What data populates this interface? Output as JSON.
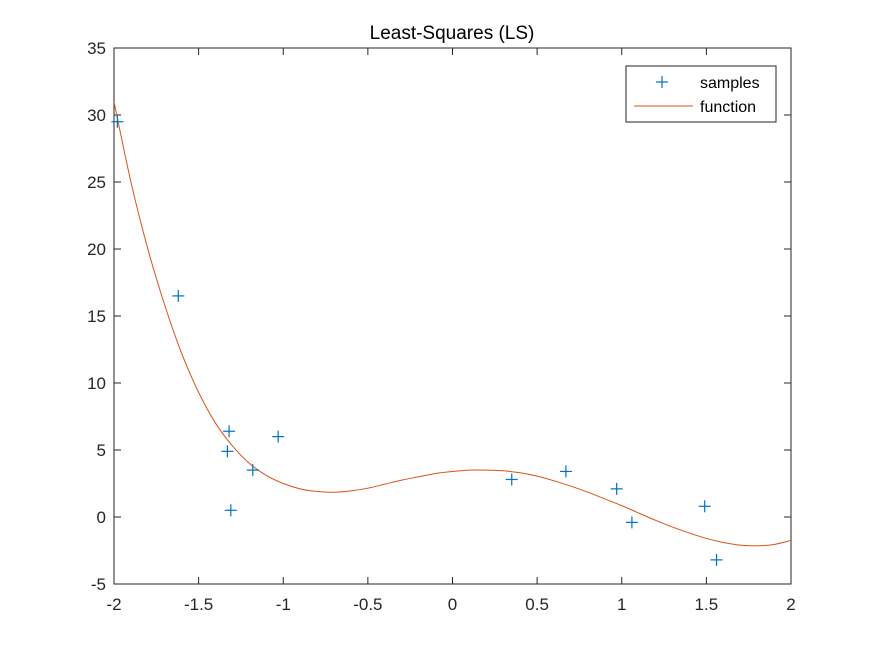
{
  "chart_data": {
    "type": "scatter",
    "title": "Least-Squares (LS)",
    "xlabel": "",
    "ylabel": "",
    "xlim": [
      -2,
      2
    ],
    "ylim": [
      -5,
      35
    ],
    "xticks": [
      -2,
      -1.5,
      -1,
      -0.5,
      0,
      0.5,
      1,
      1.5,
      2
    ],
    "xtick_labels": [
      "-2",
      "-1.5",
      "-1",
      "-0.5",
      "0",
      "0.5",
      "1",
      "1.5",
      "2"
    ],
    "yticks": [
      -5,
      0,
      5,
      10,
      15,
      20,
      25,
      30,
      35
    ],
    "ytick_labels": [
      "-5",
      "0",
      "5",
      "10",
      "15",
      "20",
      "25",
      "30",
      "35"
    ],
    "grid": false,
    "legend_position": "top-right",
    "series": [
      {
        "name": "samples",
        "kind": "scatter",
        "marker": "plus",
        "color": "#0072BD",
        "x": [
          -1.98,
          -1.62,
          -1.33,
          -1.32,
          -1.31,
          -1.18,
          -1.03,
          0.35,
          0.67,
          0.97,
          1.06,
          1.49,
          1.56
        ],
        "y": [
          29.5,
          16.5,
          4.9,
          6.4,
          0.5,
          3.5,
          6.0,
          2.8,
          3.4,
          2.1,
          -0.4,
          0.8,
          -3.2
        ]
      },
      {
        "name": "function",
        "kind": "line",
        "color": "#D95319",
        "x": [
          -2.0,
          -1.9,
          -1.8,
          -1.7,
          -1.6,
          -1.5,
          -1.4,
          -1.3,
          -1.2,
          -1.1,
          -1.0,
          -0.9,
          -0.8,
          -0.7,
          -0.6,
          -0.5,
          -0.4,
          -0.3,
          -0.2,
          -0.1,
          0.0,
          0.1,
          0.2,
          0.3,
          0.4,
          0.5,
          0.6,
          0.7,
          0.8,
          0.9,
          1.0,
          1.1,
          1.2,
          1.3,
          1.4,
          1.5,
          1.6,
          1.7,
          1.8,
          1.9,
          2.0
        ],
        "y": [
          31.0,
          25.0,
          20.0,
          15.8,
          12.2,
          9.3,
          7.0,
          5.3,
          4.0,
          3.1,
          2.5,
          2.1,
          1.9,
          1.85,
          1.95,
          2.15,
          2.45,
          2.75,
          3.0,
          3.25,
          3.4,
          3.5,
          3.5,
          3.45,
          3.3,
          3.05,
          2.7,
          2.3,
          1.85,
          1.35,
          0.85,
          0.3,
          -0.25,
          -0.75,
          -1.2,
          -1.6,
          -1.9,
          -2.1,
          -2.15,
          -2.05,
          -1.75
        ]
      }
    ]
  }
}
